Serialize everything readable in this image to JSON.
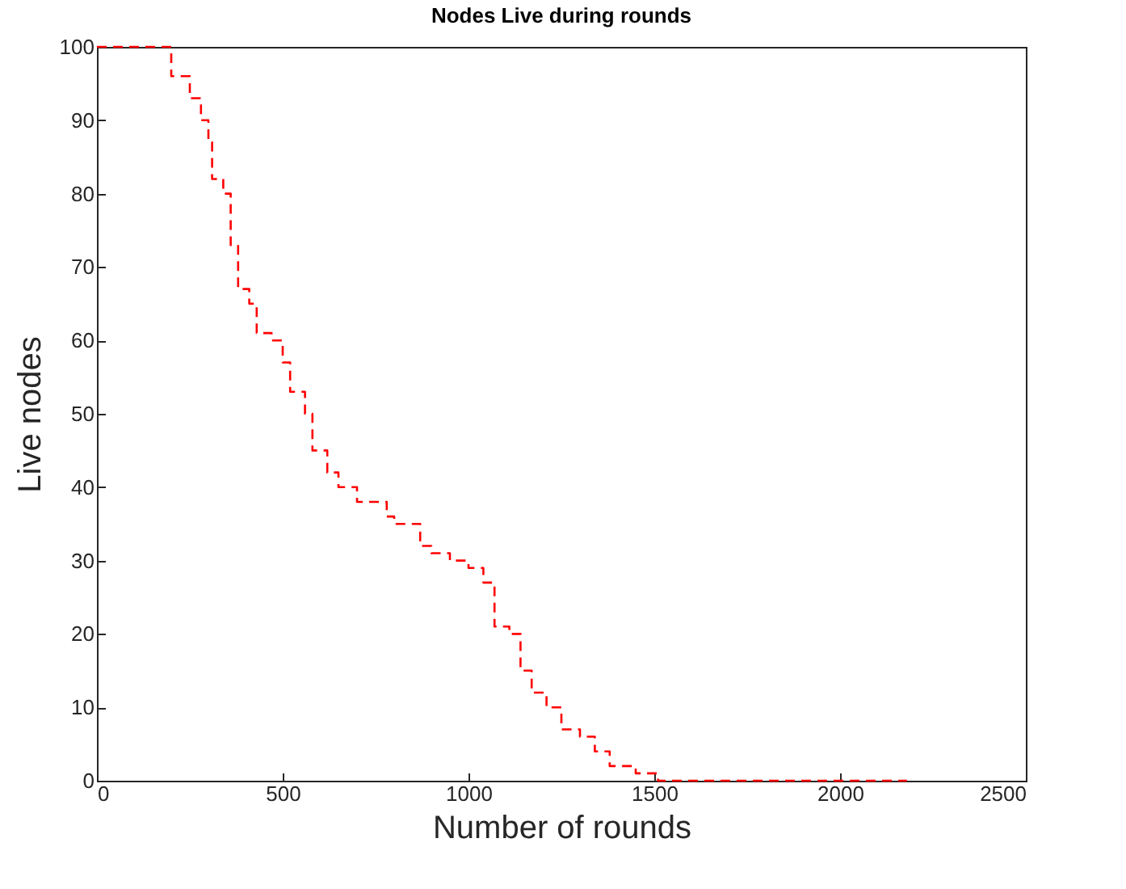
{
  "chart_data": {
    "type": "step",
    "title": "Nodes Live during rounds",
    "xlabel": "Number of rounds",
    "ylabel": "Live nodes",
    "x": [
      0,
      150,
      200,
      250,
      280,
      300,
      310,
      340,
      360,
      380,
      410,
      430,
      470,
      500,
      520,
      560,
      580,
      620,
      650,
      700,
      750,
      780,
      800,
      850,
      870,
      900,
      950,
      1000,
      1040,
      1070,
      1110,
      1140,
      1170,
      1210,
      1250,
      1300,
      1340,
      1380,
      1450,
      1510,
      2180
    ],
    "series": [
      {
        "color": "#ff0000",
        "values": [
          100,
          100,
          96,
          93,
          90,
          87,
          82,
          80,
          73,
          67,
          65,
          61,
          60,
          57,
          53,
          50,
          45,
          42,
          40,
          38,
          38,
          36,
          35,
          35,
          32,
          31,
          30,
          29,
          27,
          21,
          20,
          15,
          12,
          10,
          7,
          6,
          4,
          2,
          1,
          0,
          0
        ]
      }
    ],
    "xlim": [
      0,
      2500
    ],
    "xticks": [
      0,
      500,
      1000,
      1500,
      2000,
      2500
    ],
    "ylim": [
      0,
      100
    ],
    "yticks": [
      0,
      10,
      20,
      30,
      40,
      50,
      60,
      70,
      80,
      90,
      100
    ],
    "grid": false,
    "legend": false,
    "marker": "none",
    "line_style": "dashed"
  }
}
